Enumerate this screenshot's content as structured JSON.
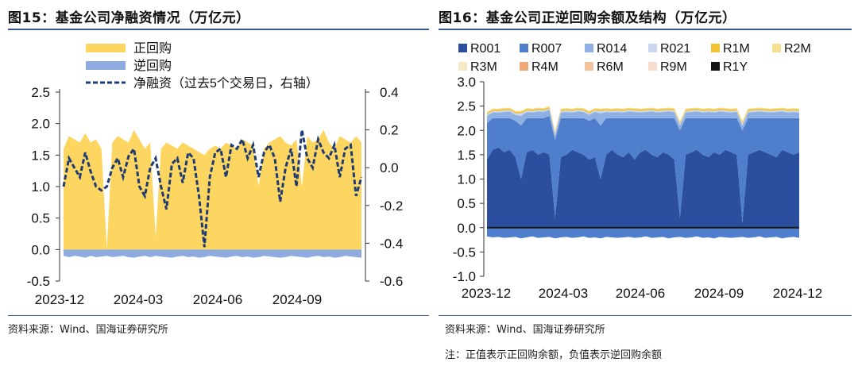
{
  "left": {
    "title": "图15：基金公司净融资情况（万亿元）",
    "source": "资料来源：Wind、国海证券研究所"
  },
  "right": {
    "title": "图16：基金公司正逆回购余额及结构（万亿元）",
    "source": "资料来源：Wind、国海证券研究所",
    "note": "注：正值表示正回购余额，负值表示逆回购余额"
  },
  "colors": {
    "R001": "#2b4f9e",
    "R007": "#4f7fcc",
    "R014": "#8fb0e2",
    "R021": "#c9d8f0",
    "R1M": "#f3c230",
    "R2M": "#f7df90",
    "R3M": "#f4e9c4",
    "R4M": "#f0a878",
    "R6M": "#f3c3a0",
    "R9M": "#f7ddd0",
    "R1Y": "#111111",
    "repo": "#fcd660",
    "reverse": "#8eaadf",
    "net": "#1f3b73"
  },
  "chart_data": [
    {
      "type": "area",
      "title": "图15：基金公司净融资情况（万亿元）",
      "x_ticks": [
        "2023-12",
        "2024-03",
        "2024-06",
        "2024-09"
      ],
      "x_range": [
        "2023-12",
        "2024-12"
      ],
      "ylim_left": [
        -0.5,
        2.5
      ],
      "yticks_left": [
        "2.5",
        "2.0",
        "1.5",
        "1.0",
        "0.5",
        "0.0",
        "-0.5"
      ],
      "ylim_right": [
        -0.6,
        0.4
      ],
      "yticks_right": [
        "0.4",
        "0.2",
        "0.0",
        "-0.2",
        "-0.4",
        "-0.6"
      ],
      "legend": [
        {
          "name": "正回购",
          "kind": "area"
        },
        {
          "name": "逆回购",
          "kind": "area"
        },
        {
          "name": "净融资（过去5个交易日，右轴）",
          "kind": "dashed-line"
        }
      ],
      "series": [
        {
          "name": "正回购",
          "axis": "left",
          "note": "daily balance, approx 1.5-1.9 with sharp dips near 2024-01, 2024-03, 2024-08, 2024-09",
          "values": [
            1.6,
            1.8,
            1.75,
            1.7,
            1.85,
            1.7,
            1.75,
            1.6,
            0.0,
            1.7,
            1.8,
            1.75,
            1.7,
            1.9,
            1.75,
            1.6,
            1.7,
            0.2,
            1.6,
            1.7,
            1.65,
            1.6,
            1.7,
            1.65,
            1.6,
            1.55,
            1.5,
            1.6,
            1.65,
            1.6,
            1.7,
            1.65,
            1.6,
            1.75,
            1.7,
            1.65,
            1.0,
            1.6,
            1.7,
            1.75,
            1.8,
            1.7,
            1.65,
            1.75,
            1.0,
            1.8,
            1.7,
            1.75,
            1.9,
            1.7,
            1.6,
            1.8,
            1.75,
            1.7,
            1.8,
            1.7
          ]
        },
        {
          "name": "逆回购",
          "axis": "left",
          "note": "small negative balance",
          "values": [
            -0.1,
            -0.12,
            -0.1,
            -0.11,
            -0.13,
            -0.1,
            -0.12,
            -0.11,
            -0.1,
            -0.12,
            -0.11,
            -0.1,
            -0.12,
            -0.13,
            -0.11,
            -0.1,
            -0.12,
            -0.1,
            -0.11,
            -0.12,
            -0.13,
            -0.11,
            -0.1,
            -0.12,
            -0.11,
            -0.13,
            -0.12,
            -0.1,
            -0.11,
            -0.12,
            -0.13,
            -0.11,
            -0.1,
            -0.12,
            -0.11,
            -0.13,
            -0.12,
            -0.1,
            -0.11,
            -0.12,
            -0.13,
            -0.12,
            -0.1,
            -0.11,
            -0.12,
            -0.13,
            -0.11,
            -0.1,
            -0.12,
            -0.11,
            -0.13,
            -0.12,
            -0.1,
            -0.11,
            -0.12,
            -0.13
          ]
        },
        {
          "name": "净融资（过去5个交易日，右轴）",
          "axis": "right",
          "values": [
            -0.1,
            0.05,
            0.0,
            -0.05,
            0.08,
            -0.02,
            -0.1,
            -0.12,
            -0.1,
            0.0,
            0.05,
            -0.05,
            0.06,
            0.1,
            -0.1,
            -0.15,
            0.0,
            0.05,
            -0.1,
            -0.22,
            0.02,
            0.05,
            -0.08,
            0.08,
            0.05,
            -0.15,
            -0.42,
            -0.05,
            0.08,
            0.1,
            -0.05,
            0.12,
            0.1,
            0.15,
            0.05,
            0.12,
            -0.05,
            0.08,
            0.12,
            0.05,
            -0.18,
            0.0,
            0.1,
            -0.1,
            0.2,
            0.05,
            0.0,
            0.15,
            0.08,
            0.05,
            0.12,
            -0.05,
            0.1,
            0.12,
            -0.15,
            -0.05
          ]
        }
      ]
    },
    {
      "type": "area",
      "title": "图16：基金公司正逆回购余额及结构（万亿元）",
      "x_ticks": [
        "2023-12",
        "2024-03",
        "2024-06",
        "2024-09",
        "2024-12"
      ],
      "x_range": [
        "2023-12",
        "2024-12"
      ],
      "ylim": [
        -1.0,
        3.0
      ],
      "yticks": [
        "3.0",
        "2.5",
        "2.0",
        "1.5",
        "1.0",
        "0.5",
        "0.0",
        "-0.5",
        "-1.0"
      ],
      "legend": [
        "R001",
        "R007",
        "R014",
        "R021",
        "R1M",
        "R2M",
        "R3M",
        "R4M",
        "R6M",
        "R9M",
        "R1Y"
      ],
      "series": [
        {
          "name": "R001",
          "note": "main positive layer approx 1.4-1.7, deep dips near holiday periods",
          "values": [
            1.4,
            1.6,
            1.65,
            1.55,
            1.6,
            1.45,
            1.0,
            1.55,
            1.6,
            1.5,
            1.55,
            1.5,
            0.2,
            1.45,
            1.5,
            1.6,
            1.55,
            1.5,
            1.4,
            1.45,
            1.0,
            1.5,
            1.6,
            1.5,
            1.45,
            1.55,
            1.4,
            1.55,
            1.6,
            1.5,
            1.45,
            1.55,
            1.5,
            1.4,
            0.2,
            1.5,
            1.55,
            1.6,
            1.5,
            1.45,
            1.55,
            1.5,
            1.6,
            1.55,
            1.5,
            0.1,
            1.5,
            1.55,
            1.6,
            1.55,
            1.5,
            1.45,
            1.6,
            1.55,
            1.5,
            1.55
          ]
        },
        {
          "name": "R007",
          "note": "stacked on R001",
          "values": [
            0.75,
            0.65,
            0.6,
            0.7,
            0.65,
            0.75,
            1.1,
            0.7,
            0.65,
            0.75,
            0.7,
            0.8,
            1.6,
            0.8,
            0.75,
            0.65,
            0.7,
            0.75,
            0.8,
            0.8,
            1.1,
            0.75,
            0.65,
            0.75,
            0.8,
            0.7,
            0.85,
            0.7,
            0.65,
            0.75,
            0.8,
            0.7,
            0.75,
            0.85,
            1.8,
            0.75,
            0.7,
            0.65,
            0.75,
            0.8,
            0.7,
            0.75,
            0.65,
            0.7,
            0.75,
            1.9,
            0.75,
            0.7,
            0.65,
            0.7,
            0.75,
            0.8,
            0.65,
            0.7,
            0.75,
            0.7
          ]
        },
        {
          "name": "R014",
          "values": [
            0.15,
            0.12,
            0.12,
            0.13,
            0.14,
            0.12,
            0.2,
            0.13,
            0.12,
            0.14,
            0.13,
            0.12,
            0.1,
            0.12,
            0.13,
            0.12,
            0.14,
            0.13,
            0.12,
            0.13,
            0.25,
            0.13,
            0.12,
            0.13,
            0.12,
            0.14,
            0.13,
            0.12,
            0.13,
            0.14,
            0.12,
            0.13,
            0.14,
            0.13,
            0.1,
            0.12,
            0.13,
            0.14,
            0.12,
            0.13,
            0.12,
            0.14,
            0.13,
            0.12,
            0.13,
            0.1,
            0.12,
            0.13,
            0.14,
            0.13,
            0.12,
            0.13,
            0.14,
            0.12,
            0.13,
            0.12
          ]
        },
        {
          "name": "R021",
          "values": [
            0.03,
            0.03,
            0.03,
            0.03,
            0.03,
            0.03,
            0.05,
            0.03,
            0.03,
            0.03,
            0.03,
            0.03,
            0.04,
            0.03,
            0.03,
            0.03,
            0.03,
            0.03,
            0.03,
            0.03,
            0.05,
            0.03,
            0.03,
            0.03,
            0.03,
            0.03,
            0.03,
            0.03,
            0.03,
            0.03,
            0.03,
            0.03,
            0.03,
            0.03,
            0.04,
            0.03,
            0.03,
            0.03,
            0.03,
            0.03,
            0.03,
            0.03,
            0.03,
            0.03,
            0.03,
            0.04,
            0.03,
            0.03,
            0.03,
            0.03,
            0.03,
            0.03,
            0.03,
            0.03,
            0.03,
            0.03
          ]
        },
        {
          "name": "R1M",
          "values": [
            0.03,
            0.03,
            0.03,
            0.03,
            0.03,
            0.03,
            0.03,
            0.03,
            0.03,
            0.03,
            0.03,
            0.03,
            0.03,
            0.03,
            0.03,
            0.03,
            0.03,
            0.03,
            0.03,
            0.03,
            0.03,
            0.03,
            0.03,
            0.03,
            0.03,
            0.03,
            0.03,
            0.03,
            0.03,
            0.03,
            0.03,
            0.03,
            0.03,
            0.03,
            0.03,
            0.03,
            0.03,
            0.03,
            0.03,
            0.03,
            0.03,
            0.03,
            0.03,
            0.03,
            0.03,
            0.03,
            0.03,
            0.03,
            0.03,
            0.03,
            0.03,
            0.03,
            0.03,
            0.03,
            0.03,
            0.03
          ]
        },
        {
          "name": "R2M",
          "values": [
            0.02,
            0.02,
            0.02,
            0.02,
            0.02,
            0.02,
            0.02,
            0.02,
            0.02,
            0.02,
            0.02,
            0.02,
            0.02,
            0.02,
            0.02,
            0.02,
            0.02,
            0.02,
            0.02,
            0.02,
            0.02,
            0.02,
            0.02,
            0.02,
            0.02,
            0.02,
            0.02,
            0.02,
            0.02,
            0.02,
            0.02,
            0.02,
            0.02,
            0.02,
            0.02,
            0.02,
            0.02,
            0.02,
            0.02,
            0.02,
            0.02,
            0.02,
            0.02,
            0.02,
            0.02,
            0.02,
            0.02,
            0.02,
            0.02,
            0.02,
            0.02,
            0.02,
            0.02,
            0.02,
            0.02,
            0.02
          ]
        },
        {
          "name": "reverse_R001",
          "note": "negative side, reverse repo total approx -0.2",
          "values": [
            -0.18,
            -0.2,
            -0.19,
            -0.21,
            -0.2,
            -0.19,
            -0.22,
            -0.2,
            -0.18,
            -0.21,
            -0.2,
            -0.19,
            -0.22,
            -0.2,
            -0.19,
            -0.21,
            -0.2,
            -0.18,
            -0.21,
            -0.2,
            -0.22,
            -0.19,
            -0.2,
            -0.21,
            -0.2,
            -0.19,
            -0.21,
            -0.2,
            -0.18,
            -0.21,
            -0.2,
            -0.19,
            -0.22,
            -0.2,
            -0.19,
            -0.21,
            -0.2,
            -0.18,
            -0.21,
            -0.2,
            -0.22,
            -0.19,
            -0.2,
            -0.21,
            -0.2,
            -0.19,
            -0.21,
            -0.2,
            -0.18,
            -0.21,
            -0.2,
            -0.19,
            -0.22,
            -0.2,
            -0.19,
            -0.21
          ]
        }
      ]
    }
  ]
}
